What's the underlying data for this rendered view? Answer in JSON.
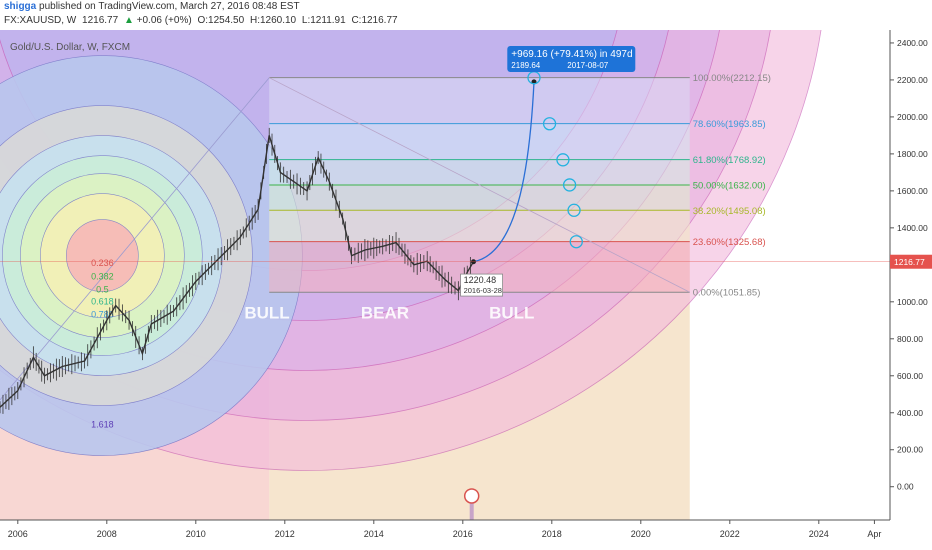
{
  "header": {
    "author": "shigga",
    "published_text": "published on TradingView.com, March 27, 2016 08:48 EST"
  },
  "symbol_bar": {
    "symbol": "FX:XAUUSD, W",
    "last": "1216.77",
    "change_arrow": "▲",
    "change": "+0.06 (+0%)",
    "open": "O:1254.50",
    "high": "H:1260.10",
    "low": "L:1211.91",
    "close": "C:1216.77"
  },
  "colors": {
    "up": "#1b9e3e",
    "brand_blue": "#2a6fd6",
    "callout_blue": "#1e73d8",
    "price_tag_red": "#e5524d"
  },
  "chart_data": {
    "type": "line",
    "title": "Gold/U.S. Dollar, W, FXCM",
    "x_range": [
      2005.6,
      2025.6
    ],
    "y_range": [
      -180,
      2470
    ],
    "x_ticks": [
      {
        "x": 2006,
        "label": "2006"
      },
      {
        "x": 2008,
        "label": "2008"
      },
      {
        "x": 2010,
        "label": "2010"
      },
      {
        "x": 2012,
        "label": "2012"
      },
      {
        "x": 2014,
        "label": "2014"
      },
      {
        "x": 2016,
        "label": "2016"
      },
      {
        "x": 2018,
        "label": "2018"
      },
      {
        "x": 2020,
        "label": "2020"
      },
      {
        "x": 2022,
        "label": "2022"
      },
      {
        "x": 2024,
        "label": "2024"
      },
      {
        "x": 2025.25,
        "label": "Apr"
      }
    ],
    "y_ticks": [
      0,
      200,
      400,
      600,
      800,
      1000,
      1200,
      1400,
      1600,
      1800,
      2000,
      2200,
      2400
    ],
    "y_tick_labels": [
      "0.00",
      "200.00",
      "400.00",
      "600.00",
      "800.00",
      "1000.00",
      "1200.00",
      "1400.00",
      "1600.00",
      "1800.00",
      "2000.00",
      "2200.00",
      "2400.00"
    ],
    "last_price": {
      "value": 1216.77,
      "label": "1216.77"
    },
    "price_series": {
      "name": "XAUUSD",
      "x": [
        2005.6,
        2006.0,
        2006.35,
        2006.6,
        2007.0,
        2007.5,
        2008.0,
        2008.2,
        2008.5,
        2008.8,
        2009.0,
        2009.5,
        2010.0,
        2010.5,
        2011.0,
        2011.4,
        2011.65,
        2011.9,
        2012.2,
        2012.5,
        2012.75,
        2013.0,
        2013.3,
        2013.5,
        2013.8,
        2014.2,
        2014.5,
        2014.9,
        2015.2,
        2015.6,
        2015.9,
        2016.1,
        2016.24
      ],
      "y": [
        430,
        520,
        700,
        600,
        650,
        680,
        900,
        980,
        900,
        720,
        880,
        950,
        1110,
        1230,
        1350,
        1500,
        1900,
        1700,
        1650,
        1600,
        1780,
        1650,
        1450,
        1250,
        1280,
        1300,
        1320,
        1200,
        1220,
        1120,
        1060,
        1160,
        1216.77
      ]
    },
    "projection_series": {
      "name": "projection",
      "x": [
        2016.24,
        2016.7,
        2017.0,
        2017.3,
        2017.6
      ],
      "y": [
        1216.77,
        1300,
        1500,
        1800,
        2189.64
      ]
    },
    "fib_retracement": {
      "x_start": 2011.65,
      "x_end": 2021.1,
      "levels": [
        {
          "ratio": 1.0,
          "label": "100.00%(2212.15)",
          "value": 2212.15,
          "color": "#888888"
        },
        {
          "ratio": 0.786,
          "label": "78.60%(1963.85)",
          "value": 1963.85,
          "color": "#3a9bd9"
        },
        {
          "ratio": 0.618,
          "label": "61.80%(1768.92)",
          "value": 1768.92,
          "color": "#2db58c"
        },
        {
          "ratio": 0.5,
          "label": "50.00%(1632.00)",
          "value": 1632.0,
          "color": "#3bb34a"
        },
        {
          "ratio": 0.382,
          "label": "38.20%(1495.08)",
          "value": 1495.08,
          "color": "#a8b82a"
        },
        {
          "ratio": 0.236,
          "label": "23.60%(1325.68)",
          "value": 1325.68,
          "color": "#d9534f"
        },
        {
          "ratio": 0.0,
          "label": "0.00%(1051.85)",
          "value": 1051.85,
          "color": "#888888"
        }
      ]
    },
    "fib_circle_labels": [
      "0.236",
      "0.382",
      "0.5",
      "0.618",
      "0.786",
      "1.618"
    ],
    "phase_labels": [
      "BULL",
      "BEAR",
      "BULL"
    ],
    "callout": {
      "line1": "+969.16 (+79.41%) in 497d",
      "line2": "2189.64",
      "line2b": "2017-08-07"
    },
    "marker": {
      "value": "1220.48",
      "date": "2016-03-28"
    },
    "path_circles_y": [
      2212,
      1963,
      1768,
      1632,
      1495,
      1325
    ]
  }
}
